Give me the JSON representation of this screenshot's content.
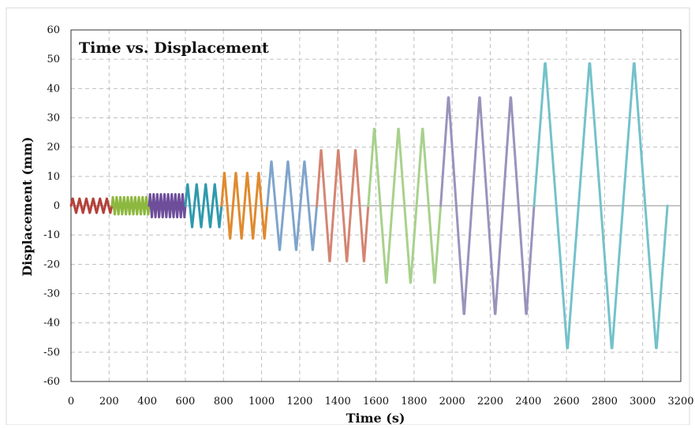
{
  "chart_data": {
    "type": "line",
    "title": "Time vs. Displacement",
    "xlabel": "Time (s)",
    "ylabel": "Displacement (mm)",
    "xlim": [
      0,
      3200
    ],
    "ylim": [
      -60,
      60
    ],
    "x_ticks": [
      0,
      200,
      400,
      600,
      800,
      1000,
      1200,
      1400,
      1600,
      1800,
      2000,
      2200,
      2400,
      2600,
      2800,
      3000,
      3200
    ],
    "y_ticks": [
      60,
      50,
      40,
      30,
      20,
      10,
      0,
      -10,
      -20,
      -30,
      -40,
      -50,
      -60
    ],
    "grid": true,
    "legend": "none",
    "series": [
      {
        "color": "#b5413a",
        "x_start": 0,
        "x_end": 215,
        "cycles": 6,
        "amplitude": 2.5
      },
      {
        "color": "#8db83f",
        "x_start": 215,
        "x_end": 410,
        "cycles": 10,
        "amplitude": 3
      },
      {
        "color": "#6e4e9b",
        "x_start": 410,
        "x_end": 600,
        "cycles": 10,
        "amplitude": 4
      },
      {
        "color": "#2e9aad",
        "x_start": 600,
        "x_end": 790,
        "cycles": 4,
        "amplitude": 7.5
      },
      {
        "color": "#e08a2e",
        "x_start": 790,
        "x_end": 1030,
        "cycles": 4,
        "amplitude": 11.5
      },
      {
        "color": "#7fa4cc",
        "x_start": 1030,
        "x_end": 1290,
        "cycles": 3,
        "amplitude": 15.5
      },
      {
        "color": "#d48572",
        "x_start": 1290,
        "x_end": 1560,
        "cycles": 3,
        "amplitude": 19.5
      },
      {
        "color": "#a8d18c",
        "x_start": 1560,
        "x_end": 1940,
        "cycles": 3,
        "amplitude": 27
      },
      {
        "color": "#9b92bc",
        "x_start": 1940,
        "x_end": 2430,
        "cycles": 3,
        "amplitude": 38
      },
      {
        "color": "#74c2ca",
        "x_start": 2430,
        "x_end": 3130,
        "cycles": 3,
        "amplitude": 50
      }
    ]
  }
}
